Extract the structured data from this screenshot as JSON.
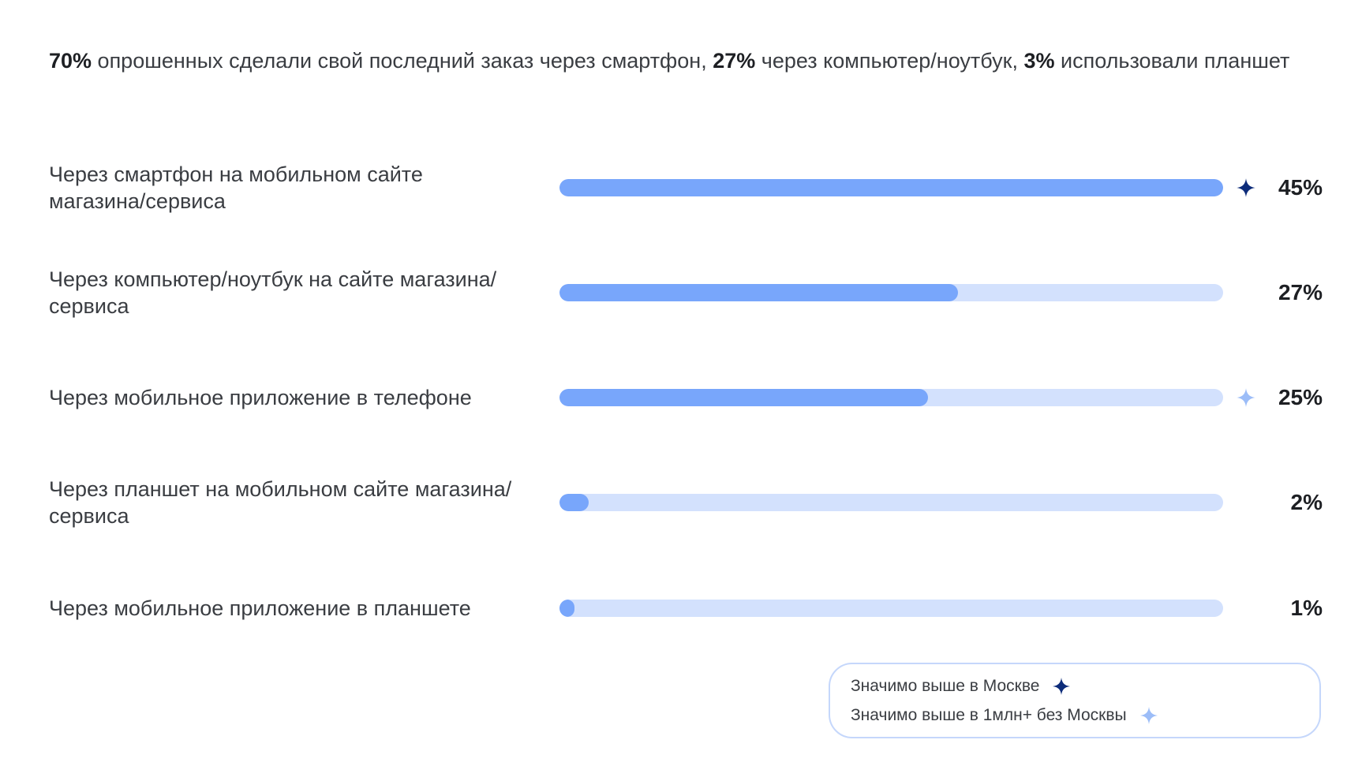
{
  "headline": {
    "smartphone_pct": "70%",
    "smartphone_text": " опрошенных сделали свой последний заказ через смартфон, ",
    "computer_pct": "27%",
    "computer_text": " через компьютер/ноутбук, ",
    "tablet_pct": "3%",
    "tablet_text": " использовали планшет"
  },
  "colors": {
    "bar_fill": "#78a6fb",
    "bar_track": "#d3e1fd",
    "star_moscow": "#0d2c7a",
    "star_million": "#9cbdf8",
    "legend_border": "#c5d7fb"
  },
  "chart_data": {
    "type": "bar",
    "orientation": "horizontal",
    "xlim": [
      0,
      45
    ],
    "categories": [
      "Через смартфон на мобильном сайте магазина/сервиса",
      "Через компьютер/ноутбук на сайте магазина/сервиса",
      "Через мобильное приложение в телефоне",
      "Через планшет на мобильном сайте магазина/сервиса",
      "Через мобильное приложение в планшете"
    ],
    "values": [
      45,
      27,
      25,
      2,
      1
    ],
    "value_labels": [
      "45%",
      "27%",
      "25%",
      "2%",
      "1%"
    ],
    "markers": [
      "moscow",
      "",
      "million",
      "",
      ""
    ],
    "grid": false
  },
  "legend": {
    "moscow": {
      "label": "Значимо выше в Москве",
      "icon": "star-dark-icon"
    },
    "million": {
      "label": "Значимо выше в 1млн+ без Москвы",
      "icon": "star-light-icon"
    }
  }
}
